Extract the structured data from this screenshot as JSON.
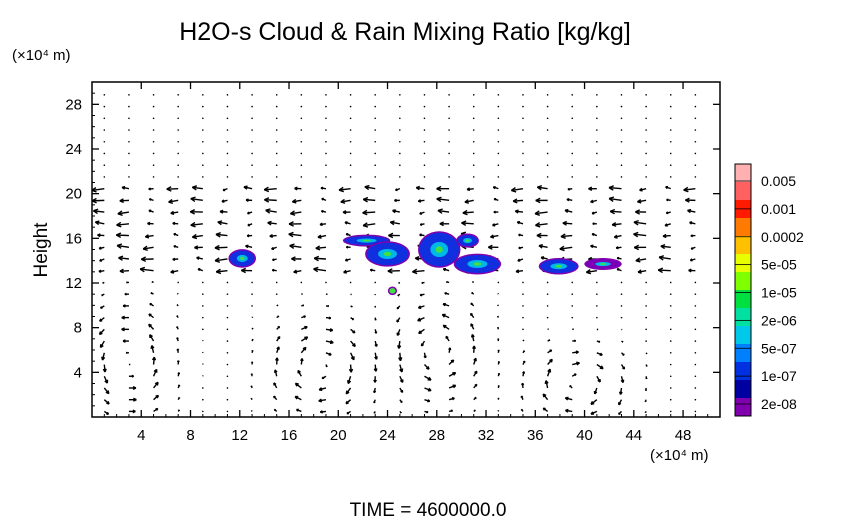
{
  "chart_data": {
    "type": "contour",
    "title": "H2O-s Cloud & Rain Mixing Ratio [kg/kg]",
    "ylabel": "Height",
    "y_unit": "(×10⁴ m)",
    "x_unit": "(×10⁴ m)",
    "xlim": [
      0,
      51
    ],
    "ylim": [
      0,
      30
    ],
    "x_ticks": [
      4,
      8,
      12,
      16,
      20,
      24,
      28,
      32,
      36,
      40,
      44,
      48
    ],
    "y_ticks": [
      4,
      8,
      12,
      16,
      20,
      24,
      28
    ],
    "colorbar": {
      "labels": [
        "0.005",
        "0.001",
        "0.0002",
        "5e-05",
        "1e-05",
        "2e-06",
        "5e-07",
        "1e-07",
        "2e-08"
      ],
      "colors": [
        "#ffb0b0",
        "#ff6060",
        "#ff1a00",
        "#ff7a00",
        "#ffc000",
        "#e8ff00",
        "#80ff00",
        "#00e040",
        "#00e0a0",
        "#00c8e8",
        "#0080ff",
        "#0030e0",
        "#0000a0",
        "#8000b0"
      ]
    },
    "cloud_patches": [
      {
        "x": 12.2,
        "y": 14.2,
        "rx": 1.0,
        "ry": 0.7,
        "fill": "#1030e0"
      },
      {
        "x": 22.3,
        "y": 15.8,
        "rx": 1.8,
        "ry": 0.4,
        "fill": "#1030e0"
      },
      {
        "x": 24.0,
        "y": 14.6,
        "rx": 1.7,
        "ry": 1.0,
        "fill": "#1030e0"
      },
      {
        "x": 28.2,
        "y": 15.0,
        "rx": 1.6,
        "ry": 1.5,
        "fill": "#1030e0"
      },
      {
        "x": 30.5,
        "y": 15.8,
        "rx": 0.8,
        "ry": 0.5,
        "fill": "#1030e0"
      },
      {
        "x": 31.3,
        "y": 13.7,
        "rx": 1.8,
        "ry": 0.8,
        "fill": "#1030e0"
      },
      {
        "x": 37.9,
        "y": 13.5,
        "rx": 1.5,
        "ry": 0.6,
        "fill": "#1030e0"
      },
      {
        "x": 41.5,
        "y": 13.7,
        "rx": 1.4,
        "ry": 0.4,
        "fill": "#7a00b8"
      },
      {
        "x": 24.4,
        "y": 11.3,
        "rx": 0.25,
        "ry": 0.25,
        "fill": "#40e040"
      }
    ],
    "circulations": [
      {
        "x": 3.0,
        "y": 5.0,
        "rx": 3.3,
        "ry": 5.0
      },
      {
        "x": 18.5,
        "y": 4.5,
        "rx": 4.0,
        "ry": 4.0
      },
      {
        "x": 28.0,
        "y": 6.0,
        "rx": 3.5,
        "ry": 4.5
      },
      {
        "x": 39.5,
        "y": 3.0,
        "rx": 4.0,
        "ry": 3.0
      }
    ],
    "footer": "TIME = 4600000.0"
  }
}
